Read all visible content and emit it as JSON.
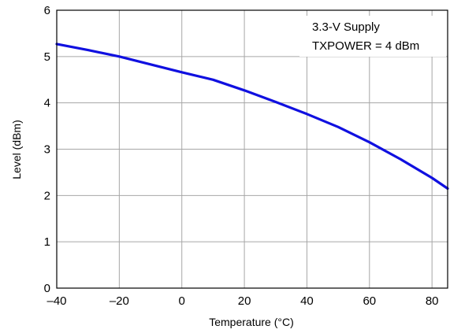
{
  "chart_data": {
    "type": "line",
    "title": "",
    "xlabel": "Temperature (°C)",
    "ylabel": "Level (dBm)",
    "xlim": [
      -40,
      85
    ],
    "ylim": [
      0,
      6
    ],
    "x_ticks": [
      -40,
      -20,
      0,
      20,
      40,
      60,
      80
    ],
    "x_tick_labels": [
      "–40",
      "–20",
      "0",
      "20",
      "40",
      "60",
      "80"
    ],
    "y_ticks": [
      0,
      1,
      2,
      3,
      4,
      5,
      6
    ],
    "y_tick_labels": [
      "0",
      "1",
      "2",
      "3",
      "4",
      "5",
      "6"
    ],
    "grid": true,
    "annotations": [
      "3.3-V Supply",
      "TXPOWER = 4 dBm"
    ],
    "series": [
      {
        "color": "#1010e0",
        "x": [
          -40,
          -30,
          -20,
          -10,
          0,
          10,
          20,
          30,
          40,
          50,
          60,
          70,
          80,
          85
        ],
        "y": [
          5.27,
          5.14,
          5.0,
          4.83,
          4.66,
          4.5,
          4.27,
          4.02,
          3.76,
          3.48,
          3.15,
          2.78,
          2.38,
          2.15
        ]
      }
    ]
  }
}
